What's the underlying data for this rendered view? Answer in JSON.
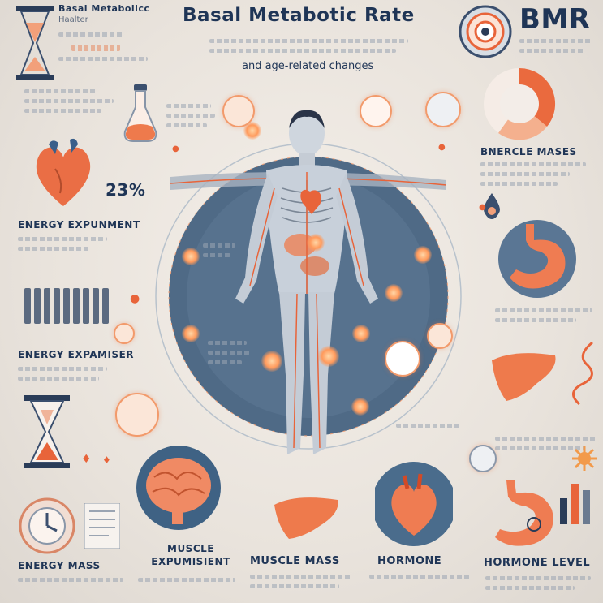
{
  "title": "Basal Metabotic Rate",
  "subtitle": "and age-related changes",
  "top_left_label": "Basal Metabolicc",
  "top_left_sublabel": "Haalter",
  "bmr_badge": "BMR",
  "heart_value": "23%",
  "sections": {
    "energy_expenditure_1": "ENERGY EXPUNMENT",
    "energy_expenditure_2": "ENERGY EXPAMISER",
    "muscle_mass_right": "BNERCLE MASES",
    "muscle_expenditure": "MUSCLE EXPUMISIENT",
    "energy_mass": "ENERGY MASS",
    "muscle_mass": "MUSCLE MASS",
    "hormone": "HORMONE",
    "hormone_level": "HORMONE LEVEL"
  },
  "colors": {
    "navy": "#1f3556",
    "orange": "#e8643a",
    "peach": "#f6b08a",
    "circle_blue": "#4f6a86"
  },
  "icons": [
    "hourglass-icon",
    "flask-icon",
    "heart-icon",
    "target-icon",
    "pie-chart-icon",
    "stomach-icon",
    "liver-icon",
    "brain-icon",
    "clock-icon",
    "lungs-icon",
    "bar-chart-icon",
    "body-figure-icon"
  ]
}
